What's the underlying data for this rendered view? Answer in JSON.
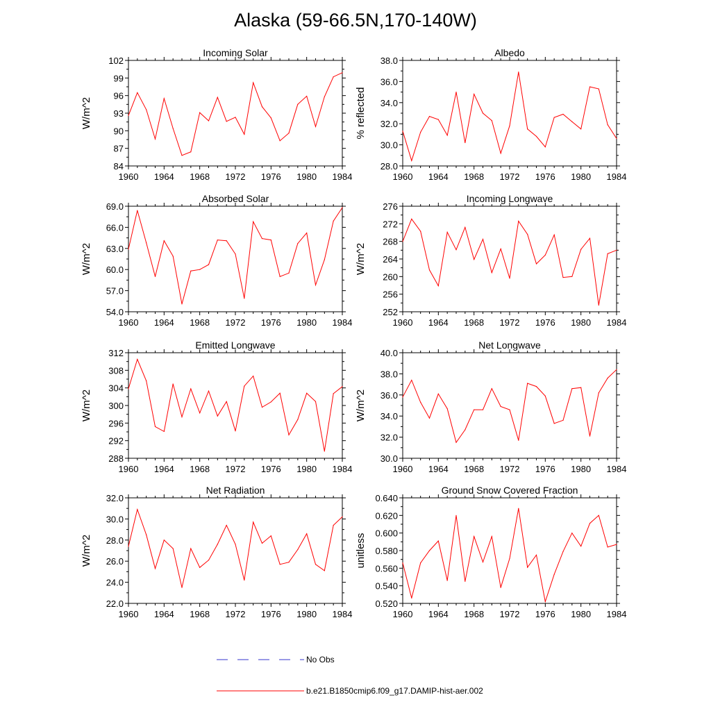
{
  "title": "Alaska (59-66.5N,170-140W)",
  "legend": {
    "obs_label": "No Obs",
    "model_label": "b.e21.B1850cmip6.f09_g17.DAMIP-hist-aer.002",
    "obs_color": "#3333cc",
    "model_color": "#ff0000"
  },
  "chart_data": [
    {
      "type": "line",
      "title": "Incoming Solar",
      "ylabel": "W/m^2",
      "xlim": [
        1960,
        1984
      ],
      "ylim": [
        84,
        102
      ],
      "yticks": [
        "84",
        "87",
        "90",
        "93",
        "96",
        "99",
        "102"
      ],
      "xticks": [
        "1960",
        "1964",
        "1968",
        "1972",
        "1976",
        "1980",
        "1984"
      ],
      "x": [
        1960,
        1961,
        1962,
        1963,
        1964,
        1965,
        1966,
        1967,
        1968,
        1969,
        1970,
        1971,
        1972,
        1973,
        1974,
        1975,
        1976,
        1977,
        1978,
        1979,
        1980,
        1981,
        1982,
        1983,
        1984
      ],
      "series": [
        {
          "values": [
            92.6,
            96.5,
            93.6,
            88.6,
            95.5,
            90.4,
            85.8,
            86.4,
            93.1,
            91.7,
            95.7,
            91.6,
            92.3,
            89.4,
            98.2,
            94.1,
            92.2,
            88.3,
            89.6,
            94.5,
            95.9,
            90.7,
            95.8,
            99.2,
            99.9
          ]
        }
      ]
    },
    {
      "type": "line",
      "title": "Albedo",
      "ylabel": "% reflected",
      "xlim": [
        1960,
        1984
      ],
      "ylim": [
        28.0,
        38.0
      ],
      "yticks": [
        "28.0",
        "30.0",
        "32.0",
        "34.0",
        "36.0",
        "38.0"
      ],
      "xticks": [
        "1960",
        "1964",
        "1968",
        "1972",
        "1976",
        "1980",
        "1984"
      ],
      "x": [
        1960,
        1961,
        1962,
        1963,
        1964,
        1965,
        1966,
        1967,
        1968,
        1969,
        1970,
        1971,
        1972,
        1973,
        1974,
        1975,
        1976,
        1977,
        1978,
        1979,
        1980,
        1981,
        1982,
        1983,
        1984
      ],
      "series": [
        {
          "values": [
            31.3,
            28.5,
            31.2,
            32.7,
            32.4,
            30.9,
            35.0,
            30.2,
            34.8,
            33.0,
            32.3,
            29.2,
            31.8,
            36.9,
            31.5,
            30.8,
            29.8,
            32.6,
            32.9,
            32.2,
            31.5,
            35.5,
            35.3,
            31.9,
            30.6
          ]
        }
      ]
    },
    {
      "type": "line",
      "title": "Absorbed Solar",
      "ylabel": "W/m^2",
      "xlim": [
        1960,
        1984
      ],
      "ylim": [
        54.0,
        69.0
      ],
      "yticks": [
        "54.0",
        "57.0",
        "60.0",
        "63.0",
        "66.0",
        "69.0"
      ],
      "xticks": [
        "1960",
        "1964",
        "1968",
        "1972",
        "1976",
        "1980",
        "1984"
      ],
      "x": [
        1960,
        1961,
        1962,
        1963,
        1964,
        1965,
        1966,
        1967,
        1968,
        1969,
        1970,
        1971,
        1972,
        1973,
        1974,
        1975,
        1976,
        1977,
        1978,
        1979,
        1980,
        1981,
        1982,
        1983,
        1984
      ],
      "series": [
        {
          "values": [
            62.9,
            68.4,
            63.8,
            59.0,
            64.1,
            61.9,
            55.1,
            59.8,
            60.0,
            60.7,
            64.2,
            64.1,
            62.2,
            55.9,
            66.8,
            64.4,
            64.2,
            59.0,
            59.5,
            63.7,
            65.2,
            57.8,
            61.4,
            66.9,
            68.8
          ]
        }
      ]
    },
    {
      "type": "line",
      "title": "Incoming Longwave",
      "ylabel": "W/m^2",
      "xlim": [
        1960,
        1984
      ],
      "ylim": [
        252,
        276
      ],
      "yticks": [
        "252",
        "256",
        "260",
        "264",
        "268",
        "272",
        "276"
      ],
      "xticks": [
        "1960",
        "1964",
        "1968",
        "1972",
        "1976",
        "1980",
        "1984"
      ],
      "x": [
        1960,
        1961,
        1962,
        1963,
        1964,
        1965,
        1966,
        1967,
        1968,
        1969,
        1970,
        1971,
        1972,
        1973,
        1974,
        1975,
        1976,
        1977,
        1978,
        1979,
        1980,
        1981,
        1982,
        1983,
        1984
      ],
      "series": [
        {
          "values": [
            268.0,
            273.1,
            270.3,
            261.5,
            257.9,
            270.1,
            266.1,
            271.2,
            263.9,
            268.5,
            260.9,
            266.3,
            259.6,
            272.6,
            269.6,
            262.9,
            264.9,
            269.5,
            259.8,
            260.0,
            266.2,
            268.7,
            253.5,
            265.2,
            266.0
          ]
        }
      ]
    },
    {
      "type": "line",
      "title": "Emitted Longwave",
      "ylabel": "W/m^2",
      "xlim": [
        1960,
        1984
      ],
      "ylim": [
        288,
        312
      ],
      "yticks": [
        "288",
        "292",
        "296",
        "300",
        "304",
        "308",
        "312"
      ],
      "xticks": [
        "1960",
        "1964",
        "1968",
        "1972",
        "1976",
        "1980",
        "1984"
      ],
      "x": [
        1960,
        1961,
        1962,
        1963,
        1964,
        1965,
        1966,
        1967,
        1968,
        1969,
        1970,
        1971,
        1972,
        1973,
        1974,
        1975,
        1976,
        1977,
        1978,
        1979,
        1980,
        1981,
        1982,
        1983,
        1984
      ],
      "series": [
        {
          "values": [
            303.8,
            310.5,
            305.6,
            295.2,
            294.1,
            304.9,
            297.4,
            303.8,
            298.3,
            303.3,
            297.6,
            300.9,
            294.2,
            304.4,
            306.7,
            299.6,
            300.8,
            302.8,
            293.3,
            296.8,
            302.8,
            300.9,
            289.6,
            302.7,
            304.3
          ]
        }
      ]
    },
    {
      "type": "line",
      "title": "Net Longwave",
      "ylabel": "W/m^2",
      "xlim": [
        1960,
        1984
      ],
      "ylim": [
        30.0,
        40.0
      ],
      "yticks": [
        "30.0",
        "32.0",
        "34.0",
        "36.0",
        "38.0",
        "40.0"
      ],
      "xticks": [
        "1960",
        "1964",
        "1968",
        "1972",
        "1976",
        "1980",
        "1984"
      ],
      "x": [
        1960,
        1961,
        1962,
        1963,
        1964,
        1965,
        1966,
        1967,
        1968,
        1969,
        1970,
        1971,
        1972,
        1973,
        1974,
        1975,
        1976,
        1977,
        1978,
        1979,
        1980,
        1981,
        1982,
        1983,
        1984
      ],
      "series": [
        {
          "values": [
            35.8,
            37.4,
            35.3,
            33.8,
            36.1,
            34.7,
            31.5,
            32.7,
            34.6,
            34.6,
            36.6,
            34.9,
            34.6,
            31.7,
            37.1,
            36.8,
            35.9,
            33.3,
            33.6,
            36.6,
            36.7,
            32.1,
            36.2,
            37.6,
            38.4
          ]
        }
      ]
    },
    {
      "type": "line",
      "title": "Net Radiation",
      "ylabel": "W/m^2",
      "xlim": [
        1960,
        1984
      ],
      "ylim": [
        22.0,
        32.0
      ],
      "yticks": [
        "22.0",
        "24.0",
        "26.0",
        "28.0",
        "30.0",
        "32.0"
      ],
      "xticks": [
        "1960",
        "1964",
        "1968",
        "1972",
        "1976",
        "1980",
        "1984"
      ],
      "x": [
        1960,
        1961,
        1962,
        1963,
        1964,
        1965,
        1966,
        1967,
        1968,
        1969,
        1970,
        1971,
        1972,
        1973,
        1974,
        1975,
        1976,
        1977,
        1978,
        1979,
        1980,
        1981,
        1982,
        1983,
        1984
      ],
      "series": [
        {
          "values": [
            27.4,
            30.9,
            28.5,
            25.3,
            28.0,
            27.2,
            23.5,
            27.2,
            25.4,
            26.1,
            27.6,
            29.4,
            27.6,
            24.2,
            29.7,
            27.7,
            28.4,
            25.7,
            25.9,
            27.1,
            28.6,
            25.7,
            25.1,
            29.4,
            30.2
          ]
        }
      ]
    },
    {
      "type": "line",
      "title": "Ground Snow Covered Fraction",
      "ylabel": "unitless",
      "xlim": [
        1960,
        1984
      ],
      "ylim": [
        0.52,
        0.64
      ],
      "yticks": [
        "0.520",
        "0.540",
        "0.560",
        "0.580",
        "0.600",
        "0.620",
        "0.640"
      ],
      "xticks": [
        "1960",
        "1964",
        "1968",
        "1972",
        "1976",
        "1980",
        "1984"
      ],
      "x": [
        1960,
        1961,
        1962,
        1963,
        1964,
        1965,
        1966,
        1967,
        1968,
        1969,
        1970,
        1971,
        1972,
        1973,
        1974,
        1975,
        1976,
        1977,
        1978,
        1979,
        1980,
        1981,
        1982,
        1983,
        1984
      ],
      "series": [
        {
          "values": [
            0.566,
            0.526,
            0.566,
            0.58,
            0.591,
            0.546,
            0.62,
            0.545,
            0.596,
            0.567,
            0.596,
            0.538,
            0.571,
            0.628,
            0.561,
            0.575,
            0.522,
            0.553,
            0.579,
            0.6,
            0.585,
            0.611,
            0.62,
            0.584,
            0.587
          ]
        }
      ]
    }
  ]
}
